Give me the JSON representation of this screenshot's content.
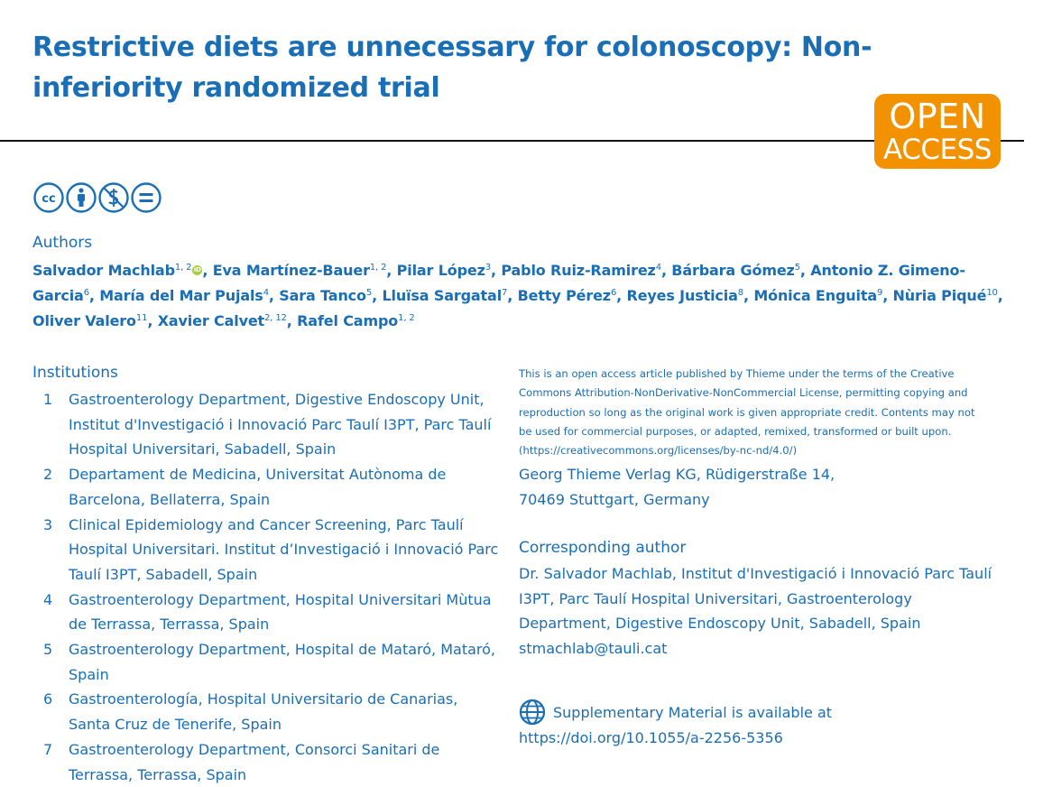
{
  "title": "Restrictive diets are unnecessary for colonoscopy: Non-inferiority randomized trial",
  "badge": {
    "line1": "OPEN",
    "line2": "ACCESS",
    "color": "#f39200"
  },
  "license_icons": [
    "cc-icon",
    "by-icon",
    "nc-icon",
    "nd-icon"
  ],
  "authors_heading": "Authors",
  "authors": [
    {
      "name": "Salvador Machlab",
      "aff": "1, 2",
      "orcid": true
    },
    {
      "name": "Eva Martínez-Bauer",
      "aff": "1, 2"
    },
    {
      "name": "Pilar López",
      "aff": "3"
    },
    {
      "name": "Pablo Ruiz-Ramirez",
      "aff": "4"
    },
    {
      "name": "Bárbara Gómez",
      "aff": "5"
    },
    {
      "name": "Antonio Z. Gimeno-Garcia",
      "aff": "6"
    },
    {
      "name": "María del Mar Pujals",
      "aff": "4"
    },
    {
      "name": "Sara Tanco",
      "aff": "5"
    },
    {
      "name": "Lluïsa Sargatal",
      "aff": "7"
    },
    {
      "name": "Betty Pérez",
      "aff": "6"
    },
    {
      "name": "Reyes Justicia",
      "aff": "8"
    },
    {
      "name": "Mónica Enguita",
      "aff": "9"
    },
    {
      "name": "Nùria Piqué",
      "aff": "10"
    },
    {
      "name": "Oliver Valero",
      "aff": "11"
    },
    {
      "name": "Xavier Calvet",
      "aff": "2, 12"
    },
    {
      "name": "Rafel Campo",
      "aff": "1, 2"
    }
  ],
  "institutions_heading": "Institutions",
  "institutions": [
    {
      "num": "1",
      "text": "Gastroenterology Department, Digestive Endoscopy Unit, Institut d'Investigació i Innovació Parc Taulí I3PT, Parc Taulí Hospital Universitari, Sabadell, Spain"
    },
    {
      "num": "2",
      "text": "Departament de Medicina, Universitat Autònoma de Barcelona, Bellaterra, Spain"
    },
    {
      "num": "3",
      "text": "Clinical Epidemiology and Cancer Screening, Parc Taulí Hospital Universitari. Institut d’Investigació i Innovació Parc Taulí I3PT, Sabadell, Spain"
    },
    {
      "num": "4",
      "text": "Gastroenterology Department, Hospital Universitari Mùtua de Terrassa, Terrassa, Spain"
    },
    {
      "num": "5",
      "text": "Gastroenterology Department, Hospital de Mataró, Mataró, Spain"
    },
    {
      "num": "6",
      "text": "Gastroenterología, Hospital Universitario de Canarias, Santa Cruz de Tenerife, Spain"
    },
    {
      "num": "7",
      "text": "Gastroenterology Department, Consorci Sanitari de Terrassa, Terrassa, Spain"
    }
  ],
  "license_text": "This is an open access article published by Thieme under the terms of the Creative Commons Attribution-NonDerivative-NonCommercial License, permitting copying and reproduction so long as the original work is given appropriate credit. Contents may not be used for commercial purposes, or adapted, remixed, transformed or built upon. (https://creativecommons.org/licenses/by-nc-nd/4.0/)",
  "publisher": {
    "line1": "Georg Thieme Verlag KG, Rüdigerstraße 14,",
    "line2": "70469 Stuttgart, Germany"
  },
  "corresponding": {
    "heading": "Corresponding author",
    "text": "Dr. Salvador Machlab, Institut d'Investigació i Innovació Parc Taulí I3PT, Parc Taulí Hospital Universitari, Gastroenterology Department, Digestive Endoscopy Unit, Sabadell, Spain",
    "email": "stmachlab@tauli.cat"
  },
  "supplementary": {
    "line1": "Supplementary Material is available at",
    "link": "https://doi.org/10.1055/a-2256-5356"
  },
  "colors": {
    "text": "#1a6eb5",
    "orcid": "#a6ce39"
  }
}
